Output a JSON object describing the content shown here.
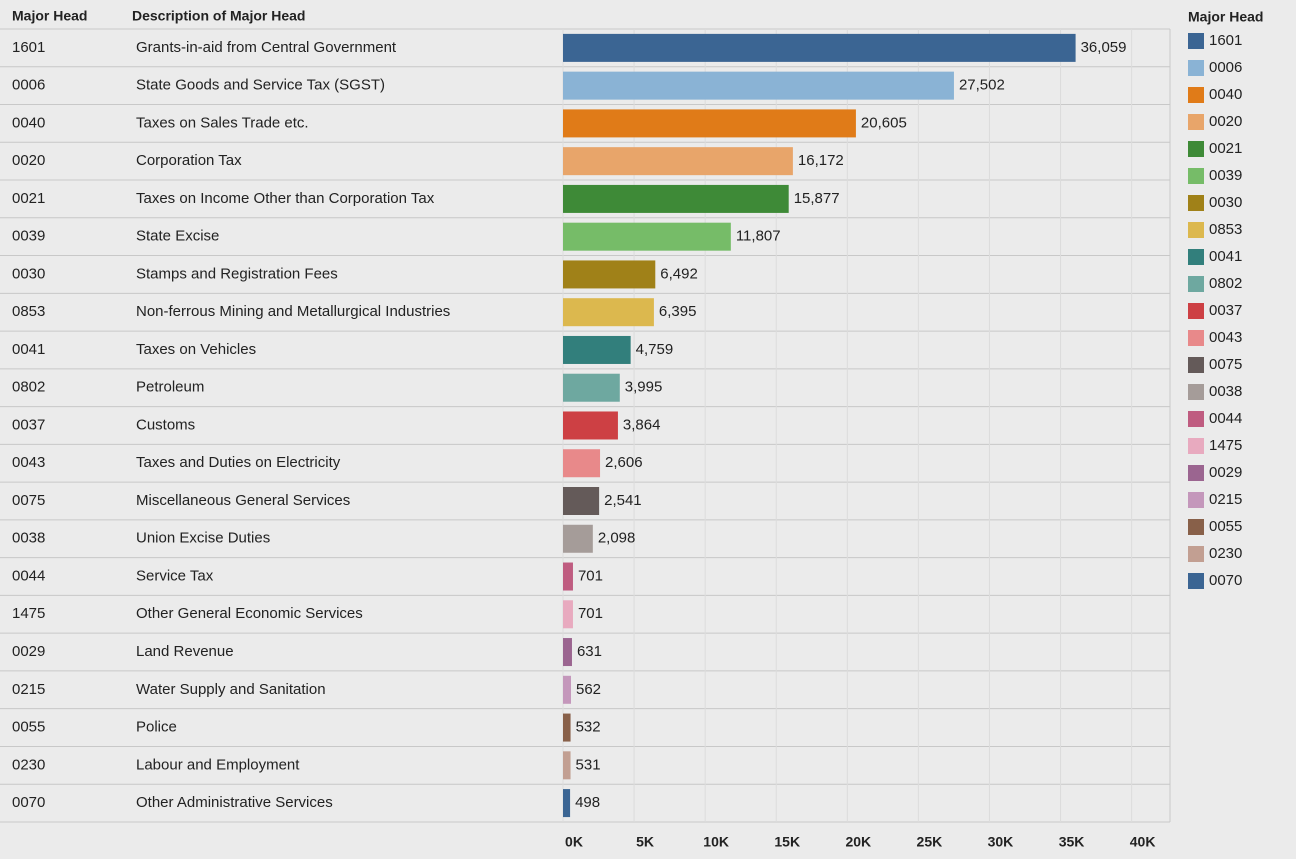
{
  "chart_data": {
    "type": "bar",
    "columns": [
      "Major Head",
      "Description  of Major Head"
    ],
    "legend_title": "Major Head",
    "categories": [
      "1601",
      "0006",
      "0040",
      "0020",
      "0021",
      "0039",
      "0030",
      "0853",
      "0041",
      "0802",
      "0037",
      "0043",
      "0075",
      "0038",
      "0044",
      "1475",
      "0029",
      "0215",
      "0055",
      "0230",
      "0070"
    ],
    "descriptions": [
      "Grants-in-aid from Central Government",
      "State Goods and Service Tax (SGST)",
      "Taxes on Sales Trade etc.",
      "Corporation Tax",
      "Taxes on Income Other than Corporation Tax",
      "State Excise",
      "Stamps and Registration Fees",
      "Non-ferrous Mining and Metallurgical Industries",
      "Taxes on Vehicles",
      "Petroleum",
      "Customs",
      "Taxes and Duties on Electricity",
      "Miscellaneous General Services",
      "Union Excise Duties",
      "Service Tax",
      "Other General Economic Services",
      "Land Revenue",
      "Water Supply and Sanitation",
      "Police",
      "Labour and Employment",
      "Other Administrative Services"
    ],
    "values": [
      36059,
      27502,
      20605,
      16172,
      15877,
      11807,
      6492,
      6395,
      4759,
      3995,
      3864,
      2606,
      2541,
      2098,
      701,
      701,
      631,
      562,
      532,
      531,
      498
    ],
    "value_labels": [
      "36,059",
      "27,502",
      "20,605",
      "16,172",
      "15,877",
      "11,807",
      "6,492",
      "6,395",
      "4,759",
      "3,995",
      "3,864",
      "2,606",
      "2,541",
      "2,098",
      "701",
      "701",
      "631",
      "562",
      "532",
      "531",
      "498"
    ],
    "colors": [
      "#3b6593",
      "#8ab3d5",
      "#e07b18",
      "#e8a56a",
      "#3e8a37",
      "#76bc68",
      "#a08118",
      "#dcb84e",
      "#327f7c",
      "#6ea8a0",
      "#cd4044",
      "#e8898a",
      "#645a59",
      "#a59c99",
      "#bf5c80",
      "#e8aabf",
      "#9b6590",
      "#c497bb",
      "#886049",
      "#c29f92",
      "#3b6593"
    ],
    "xlim": [
      0,
      42700
    ],
    "xticks": [
      {
        "value": 0,
        "label": "0K"
      },
      {
        "value": 5000,
        "label": "5K"
      },
      {
        "value": 10000,
        "label": "10K"
      },
      {
        "value": 15000,
        "label": "15K"
      },
      {
        "value": 20000,
        "label": "20K"
      },
      {
        "value": 25000,
        "label": "25K"
      },
      {
        "value": 30000,
        "label": "30K"
      },
      {
        "value": 35000,
        "label": "35K"
      },
      {
        "value": 40000,
        "label": "40K"
      }
    ],
    "grid": true
  }
}
